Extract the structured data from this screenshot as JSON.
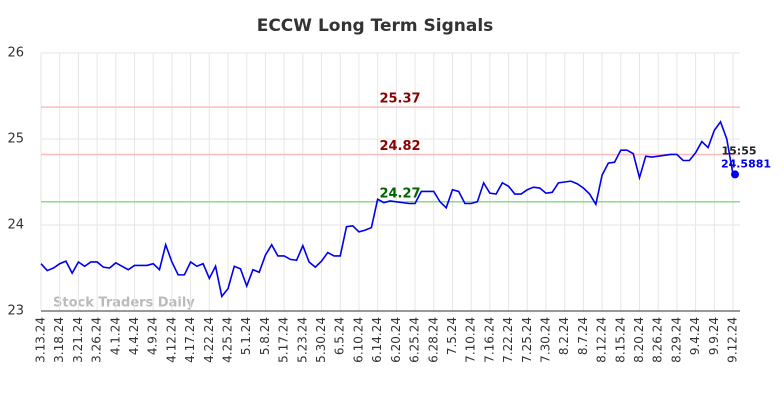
{
  "chart_data": {
    "type": "line",
    "title": "ECCW Long Term Signals",
    "watermark": "Stock Traders Daily",
    "categories": [
      "3.13.24",
      null,
      null,
      "3.18.24",
      null,
      null,
      "3.21.24",
      null,
      null,
      "3.26.24",
      null,
      null,
      "4.1.24",
      null,
      null,
      "4.4.24",
      null,
      null,
      "4.9.24",
      null,
      null,
      "4.12.24",
      null,
      null,
      "4.17.24",
      null,
      null,
      "4.22.24",
      null,
      null,
      "4.25.24",
      null,
      null,
      "5.1.24",
      null,
      null,
      "5.8.24",
      null,
      null,
      "5.17.24",
      null,
      null,
      "5.23.24",
      null,
      null,
      "5.30.24",
      null,
      null,
      "6.5.24",
      null,
      null,
      "6.10.24",
      null,
      null,
      "6.14.24",
      null,
      null,
      "6.20.24",
      null,
      null,
      "6.25.24",
      null,
      null,
      "6.28.24",
      null,
      null,
      "7.5.24",
      null,
      null,
      "7.10.24",
      null,
      null,
      "7.16.24",
      null,
      null,
      "7.22.24",
      null,
      null,
      "7.25.24",
      null,
      null,
      "7.30.24",
      null,
      null,
      "8.2.24",
      null,
      null,
      "8.7.24",
      null,
      null,
      "8.12.24",
      null,
      null,
      "8.15.24",
      null,
      null,
      "8.20.24",
      null,
      null,
      "8.26.24",
      null,
      null,
      "8.29.24",
      null,
      null,
      "9.4.24",
      null,
      null,
      "9.9.24",
      null,
      null,
      "9.12.24"
    ],
    "series": [
      {
        "name": "ECCW",
        "color": "#0000ee",
        "values": [
          23.55,
          23.47,
          23.5,
          23.55,
          23.58,
          23.44,
          23.57,
          23.52,
          23.57,
          23.57,
          23.51,
          23.5,
          23.56,
          23.52,
          23.48,
          23.53,
          23.53,
          23.53,
          23.55,
          23.48,
          23.77,
          23.57,
          23.42,
          23.42,
          23.57,
          23.52,
          23.55,
          23.38,
          23.52,
          23.17,
          23.26,
          23.52,
          23.49,
          23.29,
          23.48,
          23.45,
          23.65,
          23.77,
          23.64,
          23.64,
          23.6,
          23.59,
          23.76,
          23.57,
          23.51,
          23.58,
          23.68,
          23.64,
          23.64,
          23.98,
          23.99,
          23.92,
          23.94,
          23.97,
          24.3,
          24.26,
          24.28,
          24.27,
          24.26,
          24.25,
          24.25,
          24.39,
          24.39,
          24.39,
          24.27,
          24.2,
          24.41,
          24.39,
          24.25,
          24.25,
          24.27,
          24.49,
          24.37,
          24.36,
          24.49,
          24.45,
          24.36,
          24.36,
          24.41,
          24.44,
          24.43,
          24.37,
          24.38,
          24.49,
          24.5,
          24.51,
          24.48,
          24.43,
          24.36,
          24.24,
          24.58,
          24.72,
          24.73,
          24.87,
          24.87,
          24.83,
          24.55,
          24.8,
          24.79,
          24.8,
          24.81,
          24.82,
          24.82,
          24.75,
          24.75,
          24.84,
          24.97,
          24.9,
          25.1,
          25.2,
          25.0,
          24.5881
        ]
      }
    ],
    "hlines": [
      {
        "value": 25.37,
        "color": "#ffbbbb",
        "label_color": "#8b0000"
      },
      {
        "value": 24.82,
        "color": "#ffbbbb",
        "label_color": "#8b0000"
      },
      {
        "value": 24.27,
        "color": "#88dd88",
        "label_color": "#006400"
      }
    ],
    "last_time": "15:55",
    "ylim": [
      23,
      26
    ],
    "yticks": [
      23,
      24,
      25,
      26
    ],
    "grid": true
  }
}
